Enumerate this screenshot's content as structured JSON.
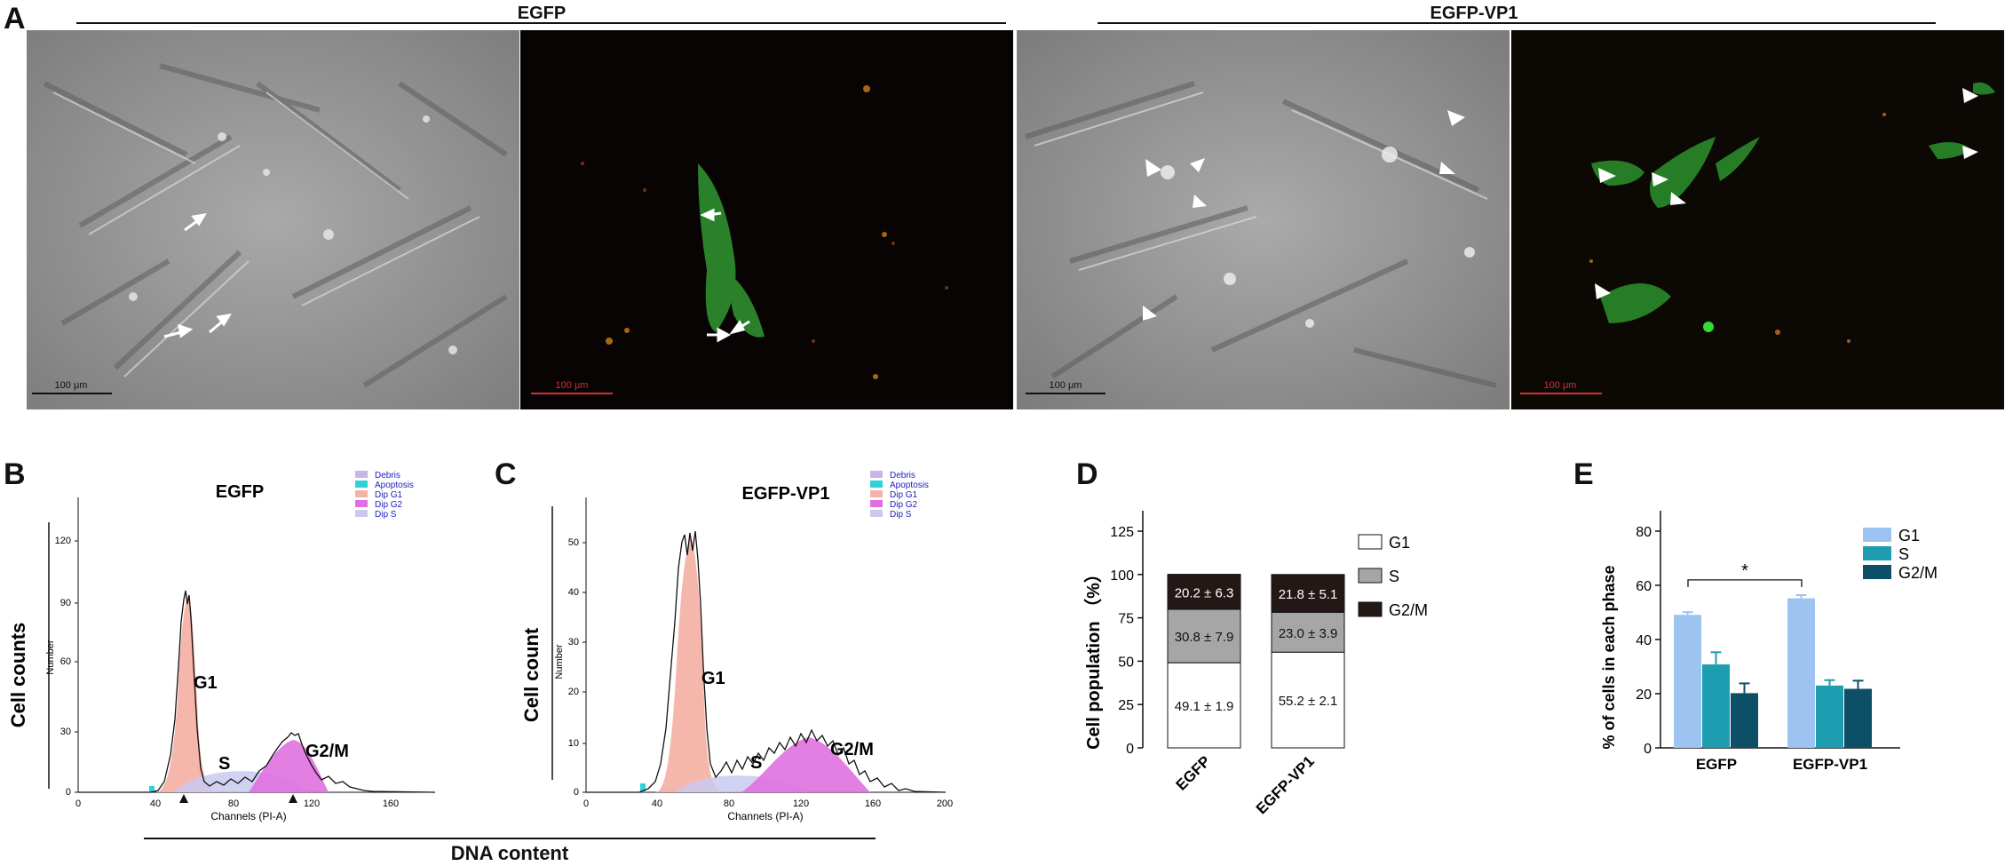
{
  "panel_a": {
    "letter": "A",
    "groups": [
      {
        "label": "EGFP"
      },
      {
        "label": "EGFP-VP1"
      }
    ],
    "scale_bars": [
      "100 μm",
      "100 μm",
      "100 μm",
      "100 μm"
    ]
  },
  "panel_b": {
    "letter": "B",
    "title": "EGFP",
    "ylabel": "Number",
    "xlabel": "Channels (PI-A)",
    "outer_ylabel": "Cell counts",
    "yticks": [
      "0",
      "30",
      "60",
      "90",
      "120"
    ],
    "xticks": [
      "0",
      "40",
      "80",
      "120",
      "160"
    ],
    "legend": [
      {
        "label": "Debris",
        "color": "#c8b4e6"
      },
      {
        "label": "Apoptosis",
        "color": "#2fd2d8"
      },
      {
        "label": "Dip G1",
        "color": "#f4b3a8"
      },
      {
        "label": "Dip G2",
        "color": "#e070e0"
      },
      {
        "label": "Dip S",
        "color": "#c9c9f0"
      }
    ],
    "peak_labels": {
      "g1": "G1",
      "s": "S",
      "g2m": "G2/M"
    }
  },
  "panel_c": {
    "letter": "C",
    "title": "EGFP-VP1",
    "ylabel": "Number",
    "xlabel": "Channels (PI-A)",
    "outer_ylabel": "Cell count",
    "yticks": [
      "0",
      "10",
      "20",
      "30",
      "40",
      "50"
    ],
    "xticks": [
      "0",
      "40",
      "80",
      "120",
      "160",
      "200"
    ],
    "legend": [
      {
        "label": "Debris",
        "color": "#c8b4e6"
      },
      {
        "label": "Apoptosis",
        "color": "#2fd2d8"
      },
      {
        "label": "Dip G1",
        "color": "#f4b3a8"
      },
      {
        "label": "Dip G2",
        "color": "#e070e0"
      },
      {
        "label": "Dip S",
        "color": "#c9c9f0"
      }
    ],
    "peak_labels": {
      "g1": "G1",
      "s": "S",
      "g2m": "G2/M"
    }
  },
  "dna_content_label": "DNA content",
  "chart_data": [
    {
      "panel": "D",
      "type": "bar",
      "stacked": true,
      "ylabel": "Cell population （%）",
      "yticks": [
        "0",
        "25",
        "50",
        "75",
        "100",
        "125"
      ],
      "ylim": [
        0,
        125
      ],
      "categories": [
        "EGFP",
        "EGFP-VP1"
      ],
      "series": [
        {
          "name": "G1",
          "values": [
            49.1,
            55.2
          ],
          "labels": [
            "49.1 ± 1.9",
            "55.2 ± 2.1"
          ],
          "color": "#ffffff"
        },
        {
          "name": "S",
          "values": [
            30.8,
            23.0
          ],
          "labels": [
            "30.8 ± 7.9",
            "23.0 ± 3.9"
          ],
          "color": "#a6a6a6"
        },
        {
          "name": "G2/M",
          "values": [
            20.2,
            21.8
          ],
          "labels": [
            "20.2 ± 6.3",
            "21.8 ± 5.1"
          ],
          "color": "#231815"
        }
      ]
    },
    {
      "panel": "E",
      "type": "bar",
      "stacked": false,
      "ylabel": "% of cells in each phase",
      "yticks": [
        "0",
        "20",
        "40",
        "60",
        "80"
      ],
      "ylim": [
        0,
        80
      ],
      "categories": [
        "EGFP",
        "EGFP-VP1"
      ],
      "significance": "*",
      "series": [
        {
          "name": "G1",
          "values": [
            49.1,
            55.2
          ],
          "errors": [
            1.0,
            1.2
          ],
          "color": "#9dc3f0"
        },
        {
          "name": "S",
          "values": [
            30.8,
            23.0
          ],
          "errors": [
            4.5,
            2.0
          ],
          "color": "#1e9cb0"
        },
        {
          "name": "G2/M",
          "values": [
            20.2,
            21.8
          ],
          "errors": [
            3.6,
            3.0
          ],
          "color": "#0d4f66"
        }
      ]
    }
  ],
  "panel_d_letter": "D",
  "panel_e_letter": "E"
}
